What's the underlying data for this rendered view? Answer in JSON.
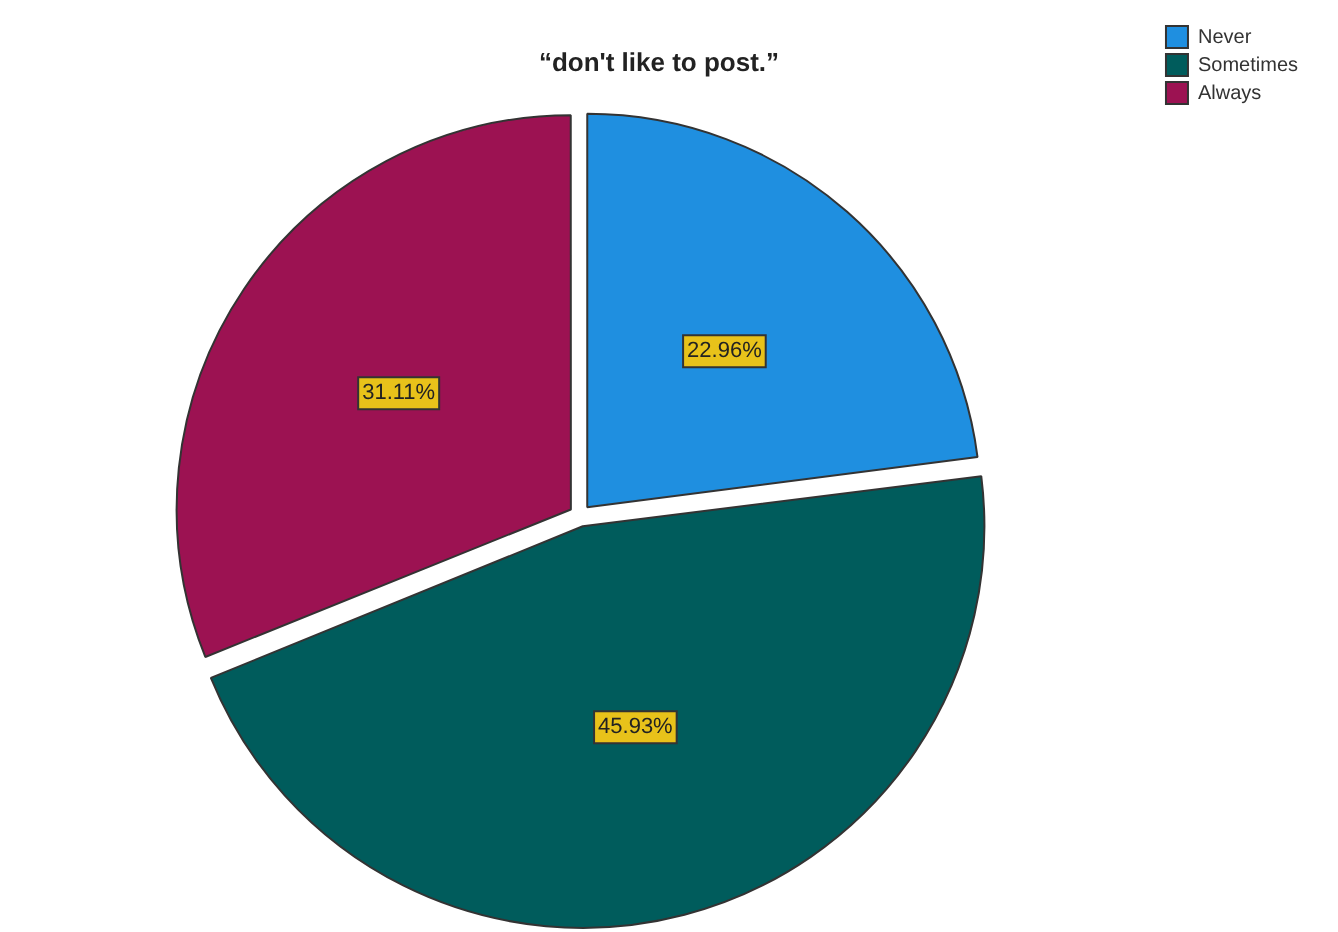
{
  "chart_data": {
    "type": "pie",
    "title": "“don't like to post.”",
    "categories": [
      "Never",
      "Sometimes",
      "Always"
    ],
    "values": [
      22.96,
      45.93,
      31.11
    ],
    "colors": [
      "#1f8fe0",
      "#005c5c",
      "#9c1252"
    ],
    "value_labels": [
      "22.96%",
      "45.93%",
      "31.11%"
    ],
    "legend": "top right"
  }
}
